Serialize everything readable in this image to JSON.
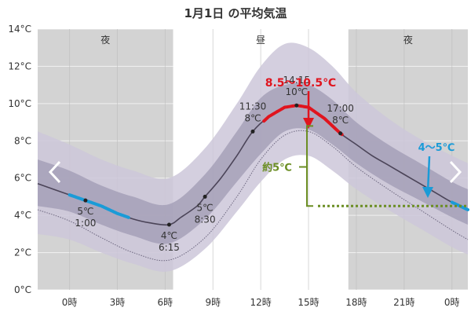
{
  "chart_data": {
    "type": "line",
    "title": "1月1日 の平均気温",
    "x_unit": "hour",
    "xlim": [
      -2,
      25
    ],
    "ylim": [
      0,
      14
    ],
    "y_ticks": [
      0,
      2,
      4,
      6,
      8,
      10,
      12,
      14
    ],
    "y_tick_suffix": "°C",
    "x_ticks": [
      {
        "x": 0,
        "label": "0時"
      },
      {
        "x": 3,
        "label": "3時"
      },
      {
        "x": 6,
        "label": "6時"
      },
      {
        "x": 9,
        "label": "9時"
      },
      {
        "x": 12,
        "label": "12時"
      },
      {
        "x": 15,
        "label": "15時"
      },
      {
        "x": 18,
        "label": "18時"
      },
      {
        "x": 21,
        "label": "21時"
      },
      {
        "x": 24,
        "label": "0時"
      }
    ],
    "periods": [
      {
        "label": "夜",
        "from": -2,
        "to": 6.5,
        "shade": true
      },
      {
        "label": "昼",
        "from": 6.5,
        "to": 17.5,
        "shade": false
      },
      {
        "label": "夜",
        "from": 17.5,
        "to": 25,
        "shade": true
      }
    ],
    "mean_curve": [
      {
        "x": -2,
        "y": 5.7
      },
      {
        "x": 0,
        "y": 5.1
      },
      {
        "x": 1,
        "y": 4.8
      },
      {
        "x": 2,
        "y": 4.5
      },
      {
        "x": 3,
        "y": 4.1
      },
      {
        "x": 4,
        "y": 3.8
      },
      {
        "x": 5,
        "y": 3.6
      },
      {
        "x": 6.25,
        "y": 3.5
      },
      {
        "x": 7,
        "y": 3.9
      },
      {
        "x": 8,
        "y": 4.5
      },
      {
        "x": 8.5,
        "y": 5.0
      },
      {
        "x": 9.5,
        "y": 6.0
      },
      {
        "x": 10.5,
        "y": 7.2
      },
      {
        "x": 11.5,
        "y": 8.5
      },
      {
        "x": 12.5,
        "y": 9.3
      },
      {
        "x": 13.5,
        "y": 9.8
      },
      {
        "x": 14.25,
        "y": 9.9
      },
      {
        "x": 15,
        "y": 9.8
      },
      {
        "x": 16,
        "y": 9.2
      },
      {
        "x": 17,
        "y": 8.4
      },
      {
        "x": 18,
        "y": 7.8
      },
      {
        "x": 19,
        "y": 7.2
      },
      {
        "x": 20,
        "y": 6.7
      },
      {
        "x": 21,
        "y": 6.2
      },
      {
        "x": 22,
        "y": 5.7
      },
      {
        "x": 23,
        "y": 5.2
      },
      {
        "x": 24,
        "y": 4.7
      },
      {
        "x": 25,
        "y": 4.3
      }
    ],
    "inner_band": [
      {
        "x": -2,
        "lo": 4.5,
        "hi": 7.0
      },
      {
        "x": 0,
        "lo": 4.2,
        "hi": 6.4
      },
      {
        "x": 2,
        "lo": 3.5,
        "hi": 5.6
      },
      {
        "x": 4,
        "lo": 2.9,
        "hi": 5.0
      },
      {
        "x": 6.25,
        "lo": 2.5,
        "hi": 4.6
      },
      {
        "x": 8.5,
        "lo": 3.8,
        "hi": 6.2
      },
      {
        "x": 10.5,
        "lo": 5.8,
        "hi": 8.5
      },
      {
        "x": 12,
        "lo": 7.3,
        "hi": 10.3
      },
      {
        "x": 13.5,
        "lo": 8.5,
        "hi": 11.0
      },
      {
        "x": 15,
        "lo": 8.6,
        "hi": 11.0
      },
      {
        "x": 16.5,
        "lo": 7.8,
        "hi": 10.2
      },
      {
        "x": 18,
        "lo": 6.8,
        "hi": 9.0
      },
      {
        "x": 20,
        "lo": 5.7,
        "hi": 7.8
      },
      {
        "x": 22,
        "lo": 4.8,
        "hi": 6.8
      },
      {
        "x": 24,
        "lo": 3.9,
        "hi": 5.8
      },
      {
        "x": 25,
        "lo": 3.5,
        "hi": 5.4
      }
    ],
    "outer_band": [
      {
        "x": -2,
        "lo": 3.0,
        "hi": 8.5
      },
      {
        "x": 0,
        "lo": 2.7,
        "hi": 7.8
      },
      {
        "x": 2,
        "lo": 2.0,
        "hi": 7.0
      },
      {
        "x": 4,
        "lo": 1.4,
        "hi": 6.4
      },
      {
        "x": 6.25,
        "lo": 1.0,
        "hi": 6.0
      },
      {
        "x": 8.5,
        "lo": 2.2,
        "hi": 7.6
      },
      {
        "x": 10.5,
        "lo": 4.2,
        "hi": 10.0
      },
      {
        "x": 12,
        "lo": 5.8,
        "hi": 12.0
      },
      {
        "x": 13.5,
        "lo": 7.0,
        "hi": 13.2
      },
      {
        "x": 15,
        "lo": 7.2,
        "hi": 13.0
      },
      {
        "x": 16.5,
        "lo": 6.4,
        "hi": 12.0
      },
      {
        "x": 18,
        "lo": 5.4,
        "hi": 10.6
      },
      {
        "x": 20,
        "lo": 4.3,
        "hi": 9.2
      },
      {
        "x": 22,
        "lo": 3.3,
        "hi": 8.1
      },
      {
        "x": 24,
        "lo": 2.3,
        "hi": 7.2
      },
      {
        "x": 25,
        "lo": 1.9,
        "hi": 6.8
      }
    ],
    "lower_dotted": [
      {
        "x": -2,
        "y": 4.3
      },
      {
        "x": 0,
        "y": 3.7
      },
      {
        "x": 2,
        "y": 2.8
      },
      {
        "x": 4,
        "y": 2.0
      },
      {
        "x": 6.25,
        "y": 1.6
      },
      {
        "x": 8.5,
        "y": 2.8
      },
      {
        "x": 10.5,
        "y": 5.0
      },
      {
        "x": 12,
        "y": 7.0
      },
      {
        "x": 13.5,
        "y": 8.3
      },
      {
        "x": 15,
        "y": 8.5
      },
      {
        "x": 16.5,
        "y": 7.7
      },
      {
        "x": 18,
        "y": 6.6
      },
      {
        "x": 20,
        "y": 5.4
      },
      {
        "x": 22,
        "y": 4.3
      },
      {
        "x": 24,
        "y": 3.2
      },
      {
        "x": 25,
        "y": 2.7
      }
    ],
    "highlight_ranges": [
      {
        "color": "#e0141e",
        "from": 12.2,
        "to": 17.1
      },
      {
        "color": "#1a9bd7",
        "from": 0.0,
        "to": 3.7
      },
      {
        "color": "#1a9bd7",
        "from": 24.0,
        "to": 25.0
      }
    ],
    "points": [
      {
        "x": 1,
        "y": 5,
        "label_line1": "5℃",
        "label_line2": "1:00",
        "label_side": "below"
      },
      {
        "x": 6.25,
        "y": 4,
        "label_line1": "4℃",
        "label_line2": "6:15",
        "label_side": "below"
      },
      {
        "x": 8.5,
        "y": 5,
        "label_line1": "5℃",
        "label_line2": "8:30",
        "label_side": "below"
      },
      {
        "x": 11.5,
        "y": 8,
        "label_line1": "11:30",
        "label_line2": "8℃",
        "label_side": "above"
      },
      {
        "x": 14.25,
        "y": 10,
        "label_line1": "14:15",
        "label_line2": "10℃",
        "label_side": "above"
      },
      {
        "x": 17,
        "y": 8,
        "label_line1": "17:00",
        "label_line2": "8℃",
        "label_side": "above"
      }
    ],
    "annotations": {
      "red_range": "8.5～10.5℃",
      "blue_range": "4～5℃",
      "diff": "約5℃"
    },
    "colors": {
      "shade": "#d3d3d3",
      "outer_band": "#ccc7d9",
      "inner_band": "#a39db5",
      "mean_line": "#4b4458",
      "red": "#e0141e",
      "blue": "#1a9bd7",
      "green": "#6b8e23"
    }
  }
}
